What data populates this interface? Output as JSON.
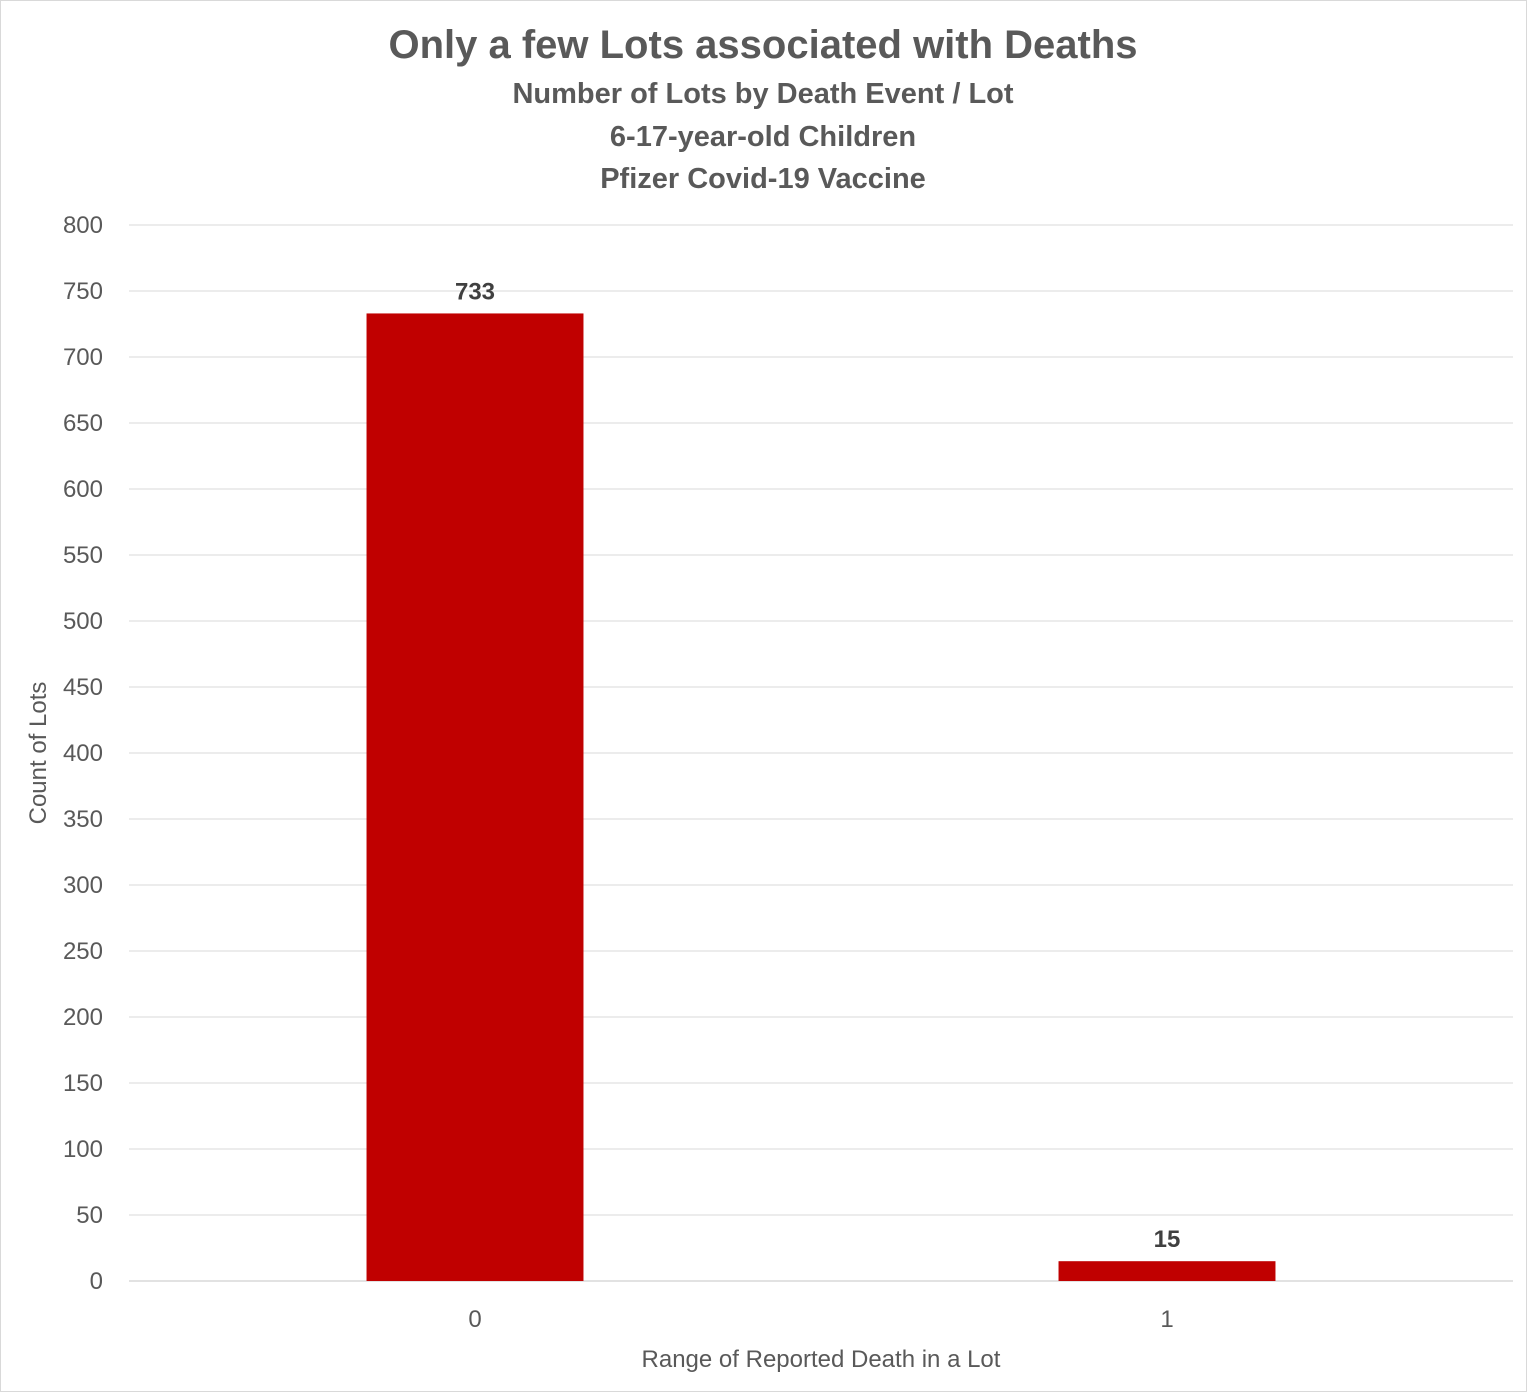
{
  "chart_data": {
    "type": "bar",
    "title": "Only a few Lots associated with Deaths",
    "subtitles": [
      "Number of Lots by Death Event / Lot",
      "6-17-year-old Children",
      "Pfizer Covid-19 Vaccine"
    ],
    "xlabel": "Range of Reported Death in a Lot",
    "ylabel": "Count of Lots",
    "categories": [
      "0",
      "1"
    ],
    "values": [
      733,
      15
    ],
    "data_labels": [
      "733",
      "15"
    ],
    "ylim": [
      0,
      800
    ],
    "y_ticks": [
      "0",
      "50",
      "100",
      "150",
      "200",
      "250",
      "300",
      "350",
      "400",
      "450",
      "500",
      "550",
      "600",
      "650",
      "700",
      "750",
      "800"
    ],
    "grid": true,
    "legend": "none",
    "bar_color": "#c00000",
    "grid_color": "#d9d9d9"
  }
}
